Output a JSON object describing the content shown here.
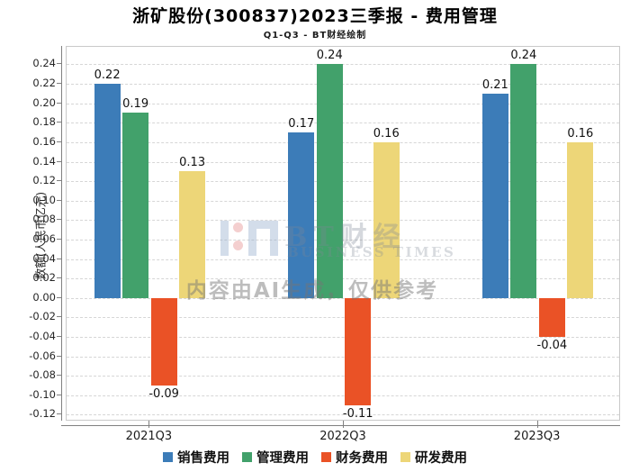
{
  "header": {
    "title": "浙矿股份(300837)2023三季报 - 费用管理",
    "subtitle": "Q1-Q3 - BT财经绘制"
  },
  "watermark": {
    "brand_text": "BT财经",
    "brand_subtext": "BUSINESS TIMES",
    "ai_note": "内容由AI生成，仅供参考"
  },
  "chart_data": {
    "type": "bar",
    "title": "浙矿股份(300837)2023三季报 - 费用管理",
    "subtitle": "Q1-Q3 - BT财经绘制",
    "categories": [
      "2021Q3",
      "2022Q3",
      "2023Q3"
    ],
    "series": [
      {
        "name": "销售费用",
        "color": "#3c7cb8",
        "values": [
          0.22,
          0.17,
          0.21
        ]
      },
      {
        "name": "管理费用",
        "color": "#42a16b",
        "values": [
          0.19,
          0.24,
          0.24
        ]
      },
      {
        "name": "财务费用",
        "color": "#ea5226",
        "values": [
          -0.09,
          -0.11,
          -0.04
        ]
      },
      {
        "name": "研发费用",
        "color": "#edd678",
        "values": [
          0.13,
          0.16,
          0.16
        ]
      }
    ],
    "xlabel": "",
    "ylabel": "数额(人民币亿元)",
    "ylim": [
      -0.127,
      0.258
    ],
    "yticks": [
      -0.12,
      -0.1,
      -0.08,
      -0.06,
      -0.04,
      -0.02,
      0.0,
      0.02,
      0.04,
      0.06,
      0.08,
      0.1,
      0.12,
      0.14,
      0.16,
      0.18,
      0.2,
      0.22,
      0.24
    ],
    "grid": "dashed-horizontal",
    "legend_position": "bottom",
    "value_labels": true
  }
}
